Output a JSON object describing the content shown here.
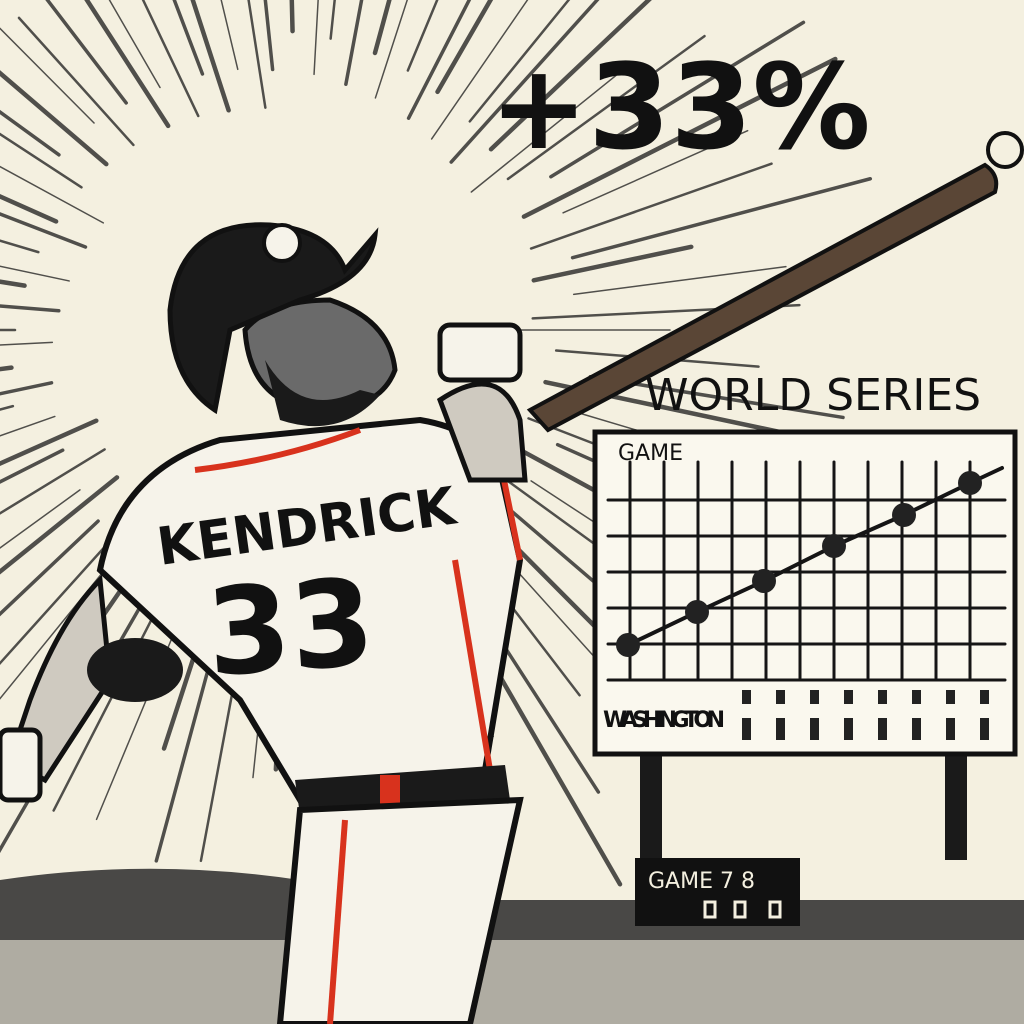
{
  "headline": "+33%",
  "scoreboard": {
    "title": "WORLD SERIES",
    "label": "GAME",
    "team": "WASHINGTON"
  },
  "jersey": {
    "name": "KENDRICK",
    "number": "33"
  },
  "sign": {
    "label": "GAME 7 8"
  }
}
